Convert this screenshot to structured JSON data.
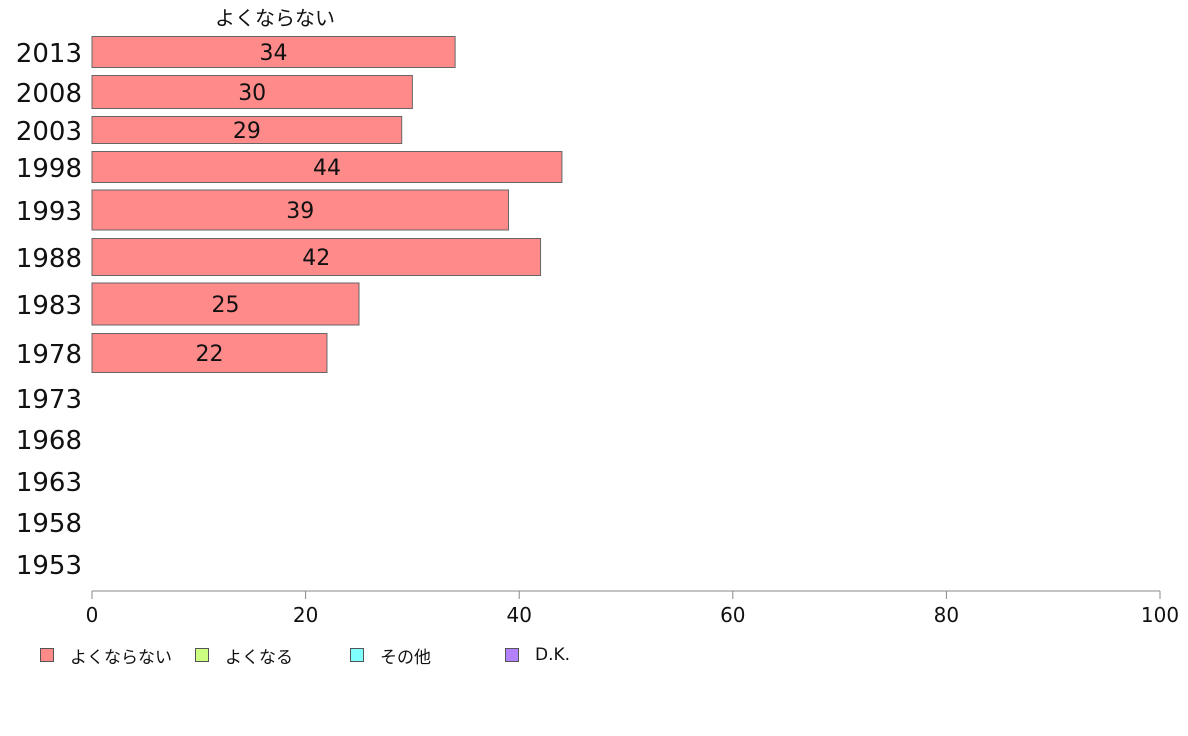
{
  "chart_data": {
    "type": "bar",
    "orientation": "horizontal",
    "stacked": true,
    "series_header": "よくならない",
    "categories": [
      "2013",
      "2008",
      "2003",
      "1998",
      "1993",
      "1988",
      "1983",
      "1978",
      "1973",
      "1968",
      "1963",
      "1958",
      "1953"
    ],
    "series": [
      {
        "name": "よくならない",
        "color": "#ff8a8a",
        "values": [
          34,
          30,
          29,
          44,
          39,
          42,
          25,
          22,
          null,
          null,
          null,
          null,
          null
        ]
      },
      {
        "name": "よくなる",
        "color": "#ccff80",
        "values": [
          null,
          null,
          null,
          null,
          null,
          null,
          null,
          null,
          null,
          null,
          null,
          null,
          null
        ]
      },
      {
        "name": "その他",
        "color": "#80ffff",
        "values": [
          null,
          null,
          null,
          null,
          null,
          null,
          null,
          null,
          null,
          null,
          null,
          null,
          null
        ]
      },
      {
        "name": "D.K.",
        "color": "#b380ff",
        "values": [
          null,
          null,
          null,
          null,
          null,
          null,
          null,
          null,
          null,
          null,
          null,
          null,
          null
        ]
      }
    ],
    "xlim": [
      0,
      100
    ],
    "xticks": [
      0,
      20,
      40,
      60,
      80,
      100
    ],
    "xlabel": "",
    "ylabel": "",
    "grid": false,
    "legend_position": "bottom-left"
  }
}
